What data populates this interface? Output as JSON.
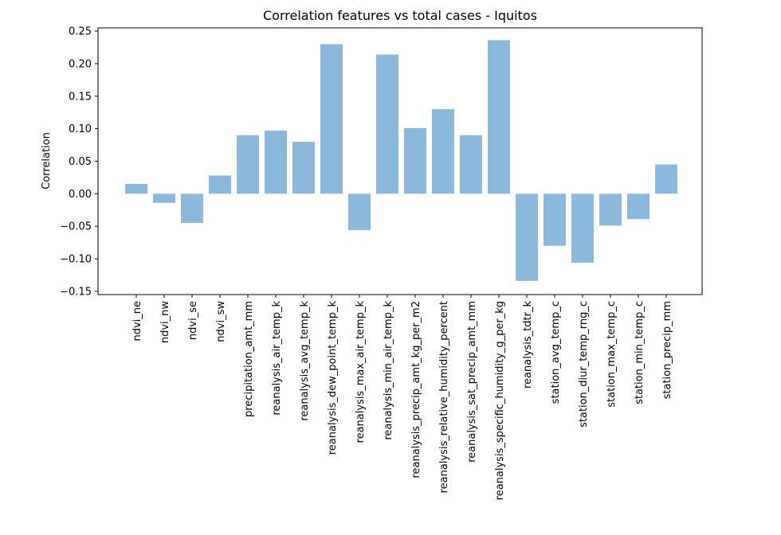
{
  "chart_data": {
    "type": "bar",
    "title": "Correlation features vs total cases - Iquitos",
    "xlabel": "",
    "ylabel": "Correlation",
    "ylim": [
      -0.155,
      0.255
    ],
    "yticks": [
      -0.15,
      -0.1,
      -0.05,
      0.0,
      0.05,
      0.1,
      0.15,
      0.2,
      0.25
    ],
    "ytick_labels": [
      "−0.15",
      "−0.10",
      "−0.05",
      "0.00",
      "0.05",
      "0.10",
      "0.15",
      "0.20",
      "0.25"
    ],
    "grid": false,
    "bar_color": "#8cb9db",
    "categories": [
      "ndvi_ne",
      "ndvi_nw",
      "ndvi_se",
      "ndvi_sw",
      "precipitation_amt_mm",
      "reanalysis_air_temp_k",
      "reanalysis_avg_temp_k",
      "reanalysis_dew_point_temp_k",
      "reanalysis_max_air_temp_k",
      "reanalysis_min_air_temp_k",
      "reanalysis_precip_amt_kg_per_m2",
      "reanalysis_relative_humidity_percent",
      "reanalysis_sat_precip_amt_mm",
      "reanalysis_specific_humidity_g_per_kg",
      "reanalysis_tdtr_k",
      "station_avg_temp_c",
      "station_diur_temp_rng_c",
      "station_max_temp_c",
      "station_min_temp_c",
      "station_precip_mm"
    ],
    "values": [
      0.015,
      -0.014,
      -0.045,
      0.028,
      0.09,
      0.097,
      0.08,
      0.23,
      -0.056,
      0.214,
      0.101,
      0.13,
      0.09,
      0.236,
      -0.134,
      -0.08,
      -0.106,
      -0.049,
      -0.039,
      0.045
    ]
  }
}
